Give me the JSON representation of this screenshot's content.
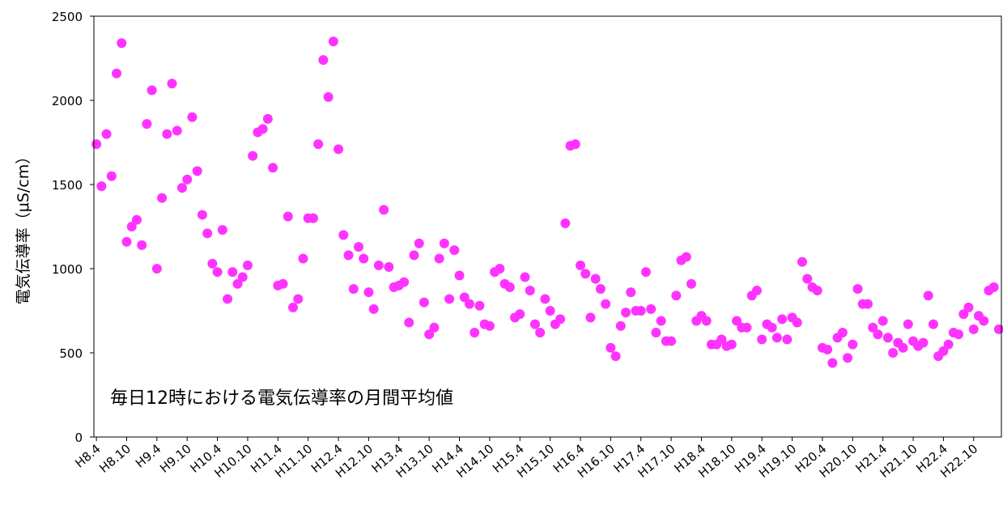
{
  "chart_data": {
    "type": "scatter",
    "title": "",
    "ylabel": "電気伝導率（μS/cm）",
    "xlabel": "",
    "annotation": "毎日12時における電気伝導率の月間平均値",
    "ylim": [
      0,
      2500
    ],
    "yticks": [
      0,
      500,
      1000,
      1500,
      2000,
      2500
    ],
    "grid": false,
    "legend": "none",
    "marker_color": "#FF33FF",
    "categories": [
      "H8.4",
      "",
      "",
      "",
      "",
      "",
      "H8.10",
      "",
      "",
      "",
      "",
      "",
      "H9.4",
      "",
      "",
      "",
      "",
      "",
      "H9.10",
      "",
      "",
      "",
      "",
      "",
      "H10.4",
      "",
      "",
      "",
      "",
      "",
      "H10.10",
      "",
      "",
      "",
      "",
      "",
      "H11.4",
      "",
      "",
      "",
      "",
      "",
      "H11.10",
      "",
      "",
      "",
      "",
      "",
      "H12.4",
      "",
      "",
      "",
      "",
      "",
      "H12.10",
      "",
      "",
      "",
      "",
      "",
      "H13.4",
      "",
      "",
      "",
      "",
      "",
      "H13.10",
      "",
      "",
      "",
      "",
      "",
      "H14.4",
      "",
      "",
      "",
      "",
      "",
      "H14.10",
      "",
      "",
      "",
      "",
      "",
      "H15.4",
      "",
      "",
      "",
      "",
      "",
      "H15.10",
      "",
      "",
      "",
      "",
      "",
      "H16.4",
      "",
      "",
      "",
      "",
      "",
      "H16.10",
      "",
      "",
      "",
      "",
      "",
      "H17.4",
      "",
      "",
      "",
      "",
      "",
      "H17.10",
      "",
      "",
      "",
      "",
      "",
      "H18.4",
      "",
      "",
      "",
      "",
      "",
      "H18.10",
      "",
      "",
      "",
      "",
      "",
      "H19.4",
      "",
      "",
      "",
      "",
      "",
      "H19.10",
      "",
      "",
      "",
      "",
      "",
      "H20.4",
      "",
      "",
      "",
      "",
      "",
      "H20.10",
      "",
      "",
      "",
      "",
      "",
      "H21.4",
      "",
      "",
      "",
      "",
      "",
      "H21.10",
      "",
      "",
      "",
      "",
      "",
      "H22.4",
      "",
      "",
      "",
      "",
      "",
      "H22.10",
      "",
      "",
      "",
      "",
      ""
    ],
    "values": [
      1740,
      1490,
      1800,
      1550,
      2160,
      2340,
      1160,
      1250,
      1290,
      1140,
      1860,
      2060,
      1000,
      1420,
      1800,
      2100,
      1820,
      1480,
      1530,
      1900,
      1580,
      1320,
      1210,
      1030,
      980,
      1230,
      820,
      980,
      910,
      950,
      1020,
      1670,
      1810,
      1830,
      1890,
      1600,
      900,
      910,
      1310,
      770,
      820,
      1060,
      1300,
      1300,
      1740,
      2240,
      2020,
      2350,
      1710,
      1200,
      1080,
      880,
      1130,
      1060,
      860,
      760,
      1020,
      1350,
      1010,
      890,
      900,
      920,
      680,
      1080,
      1150,
      800,
      610,
      650,
      1060,
      1150,
      820,
      1110,
      960,
      830,
      790,
      620,
      780,
      670,
      660,
      980,
      1000,
      910,
      890,
      710,
      730,
      950,
      870,
      670,
      620,
      820,
      750,
      670,
      700,
      1270,
      1730,
      1740,
      1020,
      970,
      710,
      940,
      880,
      790,
      530,
      480,
      660,
      740,
      860,
      750,
      750,
      980,
      760,
      620,
      690,
      570,
      570,
      840,
      1050,
      1070,
      910,
      690,
      720,
      690,
      550,
      550,
      580,
      540,
      550,
      690,
      650,
      650,
      840,
      870,
      580,
      670,
      650,
      590,
      700,
      580,
      710,
      680,
      1040,
      940,
      890,
      870,
      530,
      520,
      440,
      590,
      620,
      470,
      550,
      880,
      790,
      790,
      650,
      610,
      690,
      590,
      500,
      560,
      530,
      670,
      570,
      540,
      560,
      840,
      670,
      480,
      510,
      550,
      620,
      610,
      730,
      770,
      640,
      720,
      690,
      870,
      890,
      640
    ]
  }
}
